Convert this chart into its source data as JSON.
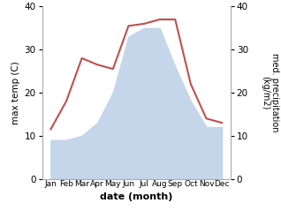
{
  "months": [
    "Jan",
    "Feb",
    "Mar",
    "Apr",
    "May",
    "Jun",
    "Jul",
    "Aug",
    "Sep",
    "Oct",
    "Nov",
    "Dec"
  ],
  "temperature": [
    11.5,
    18.0,
    28.0,
    26.5,
    25.5,
    35.5,
    36.0,
    37.0,
    37.0,
    22.0,
    14.0,
    13.0
  ],
  "precipitation": [
    9.0,
    9.0,
    10.0,
    13.0,
    20.0,
    33.0,
    35.0,
    35.0,
    26.0,
    18.0,
    12.0,
    12.0
  ],
  "temp_color": "#c0504d",
  "precip_color": "#c5d5ea",
  "ylim": [
    0,
    40
  ],
  "yticks": [
    0,
    10,
    20,
    30,
    40
  ],
  "xlabel": "date (month)",
  "ylabel_left": "max temp (C)",
  "ylabel_right": "med. precipitation\n(kg/m2)",
  "background_color": "#ffffff",
  "fig_width": 3.18,
  "fig_height": 2.47,
  "dpi": 100
}
